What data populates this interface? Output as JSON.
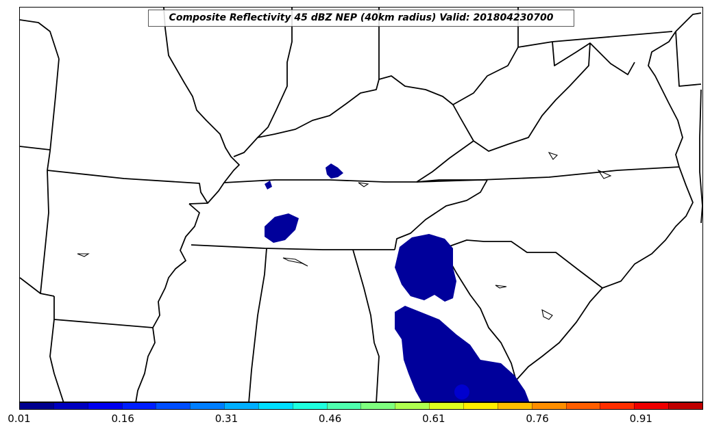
{
  "title": "Composite Reflectivity 45 dBZ NEP (40km radius) Valid: 201804230700",
  "colorbar": {
    "range": [
      0.01,
      1.0
    ],
    "ticks": [
      "0.01",
      "0.16",
      "0.31",
      "0.46",
      "0.61",
      "0.76",
      "0.91"
    ],
    "colors": [
      "#00008f",
      "#0000bf",
      "#0000ef",
      "#001fff",
      "#004fff",
      "#007fff",
      "#00afff",
      "#00dfff",
      "#1fffdf",
      "#4fffaf",
      "#7fff7f",
      "#afff4f",
      "#dfff1f",
      "#ffef00",
      "#ffbf00",
      "#ff8f00",
      "#ff5f00",
      "#ff2f00",
      "#ef0000",
      "#bf0000"
    ]
  },
  "probability_fill_color": "#00009b",
  "map_layers": [
    "state-borders",
    "coastline",
    "lakes",
    "probability-areas"
  ]
}
